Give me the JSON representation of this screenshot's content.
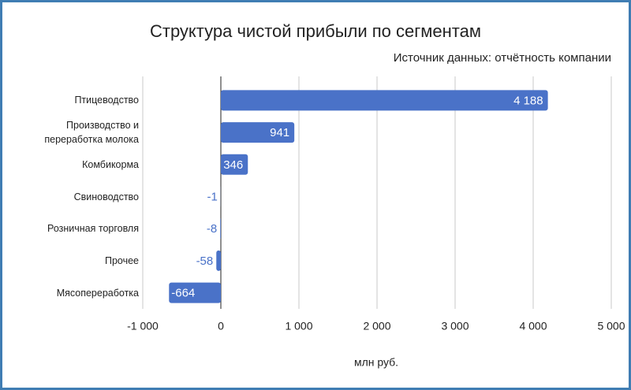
{
  "chart_data": {
    "type": "bar",
    "orientation": "horizontal",
    "title": "Структура чистой прибыли по сегментам",
    "subtitle": "Источник данных: отчётность компании",
    "x_label": "млн руб.",
    "categories": [
      "Птицеводство",
      "Производство и переработка молока",
      "Комбикорма",
      "Свиноводство",
      "Розничная торговля",
      "Прочее",
      "Мясопереработка"
    ],
    "values": [
      4188,
      941,
      346,
      -1,
      -8,
      -58,
      -664
    ],
    "value_labels": [
      "4 188",
      "941",
      "346",
      "-1",
      "-8",
      "-58",
      "-664"
    ],
    "color": "#4a72c8",
    "xlim": [
      -1000,
      5000
    ],
    "xticks": [
      {
        "value": -1000,
        "label": "-1 000"
      },
      0,
      {
        "value": 1000,
        "label": "1 000"
      },
      {
        "value": 2000,
        "label": "2 000"
      },
      {
        "value": 3000,
        "label": "3 000"
      },
      {
        "value": 4000,
        "label": "4 000"
      },
      {
        "value": 5000,
        "label": "5 000"
      }
    ],
    "grid": true
  }
}
